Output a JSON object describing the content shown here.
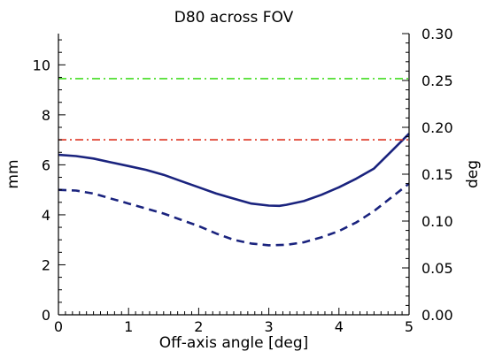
{
  "chart_data": {
    "type": "line",
    "title": "D80 across FOV",
    "xlabel": "Off-axis angle [deg]",
    "ylabel_left": "mm",
    "ylabel_right": "deg",
    "xlim": [
      0,
      5
    ],
    "ylim_left": [
      0,
      11.25
    ],
    "ylim_right": [
      0,
      0.3
    ],
    "grid": false,
    "x_ticks": [
      "0",
      "1",
      "2",
      "3",
      "4",
      "5"
    ],
    "y_left_ticks": [
      "0",
      "2",
      "4",
      "6",
      "8",
      "10"
    ],
    "y_right_ticks": [
      "0.00",
      "0.05",
      "0.10",
      "0.15",
      "0.20",
      "0.25",
      "0.30"
    ],
    "series": [
      {
        "style": "solid",
        "color": "#1a237e",
        "x": [
          0,
          0.25,
          0.5,
          0.75,
          1.0,
          1.25,
          1.5,
          1.75,
          2.0,
          2.25,
          2.5,
          2.75,
          3.0,
          3.15,
          3.25,
          3.5,
          3.75,
          4.0,
          4.25,
          4.5,
          4.75,
          5.0
        ],
        "y": [
          6.4,
          6.35,
          6.25,
          6.1,
          5.95,
          5.8,
          5.6,
          5.35,
          5.1,
          4.85,
          4.65,
          4.45,
          4.37,
          4.36,
          4.4,
          4.55,
          4.8,
          5.1,
          5.45,
          5.85,
          6.55,
          7.25
        ]
      },
      {
        "style": "dashed",
        "color": "#1a237e",
        "x": [
          0,
          0.25,
          0.5,
          0.75,
          1.0,
          1.25,
          1.5,
          1.75,
          2.0,
          2.25,
          2.5,
          2.75,
          3.0,
          3.25,
          3.5,
          3.75,
          4.0,
          4.25,
          4.5,
          4.75,
          5.0
        ],
        "y": [
          5.0,
          4.97,
          4.85,
          4.65,
          4.45,
          4.25,
          4.05,
          3.8,
          3.55,
          3.25,
          3.0,
          2.85,
          2.78,
          2.8,
          2.9,
          3.1,
          3.35,
          3.7,
          4.15,
          4.7,
          5.25
        ]
      },
      {
        "style": "dashdot",
        "color": "#44dd22",
        "x": [
          0,
          5
        ],
        "y": [
          9.45,
          9.45
        ]
      },
      {
        "style": "dashdot",
        "color": "#dd3322",
        "x": [
          0,
          5
        ],
        "y": [
          7.0,
          7.0
        ]
      }
    ]
  }
}
